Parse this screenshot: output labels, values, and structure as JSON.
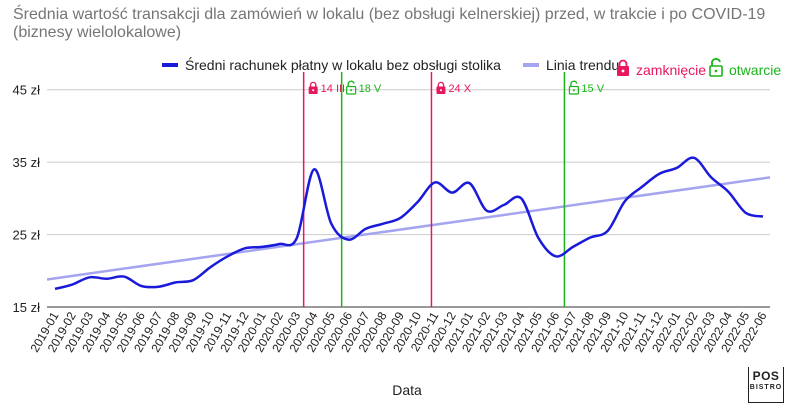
{
  "chart_data": {
    "type": "line",
    "title": "Średnia wartość transakcji dla zamówień w lokalu (bez obsługi kelnerskiej) przed, w trakcie i po COVID-19 (biznesy wielolokalowe)",
    "xlabel": "Data",
    "ylabel": "",
    "ylim": [
      15,
      48
    ],
    "yticks": [
      15,
      25,
      35,
      45
    ],
    "ytick_labels": [
      "15 zł",
      "25 zł",
      "35 zł",
      "45 zł"
    ],
    "grid": "horizontal",
    "legend_position": "top",
    "categories": [
      "2019-01",
      "2019-02",
      "2019-03",
      "2019-04",
      "2019-05",
      "2019-06",
      "2019-07",
      "2019-08",
      "2019-09",
      "2019-10",
      "2019-11",
      "2019-12",
      "2020-01",
      "2020-02",
      "2020-03",
      "2020-04",
      "2020-05",
      "2020-06",
      "2020-07",
      "2020-08",
      "2020-09",
      "2020-10",
      "2020-11",
      "2020-12",
      "2021-01",
      "2021-02",
      "2021-03",
      "2021-04",
      "2021-05",
      "2021-06",
      "2021-07",
      "2021-08",
      "2021-09",
      "2021-10",
      "2021-11",
      "2021-12",
      "2022-01",
      "2022-02",
      "2022-03",
      "2022-04",
      "2022-05",
      "2022-06"
    ],
    "series": [
      {
        "name": "Średni rachunek płatny w lokalu bez obsługi stolika",
        "color": "#1a1adb",
        "values": [
          17.5,
          18.1,
          19.1,
          18.9,
          19.2,
          17.9,
          17.8,
          18.4,
          18.7,
          20.5,
          22.0,
          23.1,
          23.3,
          23.7,
          24.5,
          34.0,
          26.5,
          24.3,
          25.8,
          26.5,
          27.3,
          29.5,
          32.2,
          30.8,
          32.1,
          28.3,
          29.1,
          30.0,
          24.5,
          22.0,
          23.3,
          24.6,
          25.5,
          29.6,
          31.6,
          33.4,
          34.2,
          35.6,
          32.9,
          30.9,
          28.0,
          27.5
        ]
      },
      {
        "name": "Linia trendu",
        "color": "#a4a4f0",
        "trend": true,
        "start": 18.8,
        "end": 32.9
      }
    ],
    "annotations": [
      {
        "index": 14.4,
        "label": "14 III",
        "kind": "zamknięcie",
        "color": "#e8185e"
      },
      {
        "index": 16.6,
        "label": "18 V",
        "kind": "otwarcie",
        "color": "#19b519"
      },
      {
        "index": 21.8,
        "label": "24 X",
        "kind": "zamknięcie",
        "color": "#e8185e"
      },
      {
        "index": 29.5,
        "label": "15 V",
        "kind": "otwarcie",
        "color": "#19b519"
      }
    ],
    "legend_extra": [
      {
        "label": "zamknięcie",
        "color": "#e8185e",
        "icon": "lock-closed-icon"
      },
      {
        "label": "otwarcie",
        "color": "#19b519",
        "icon": "lock-open-icon"
      }
    ]
  },
  "logo": {
    "line1": "POS",
    "line2": "BISTRO"
  }
}
